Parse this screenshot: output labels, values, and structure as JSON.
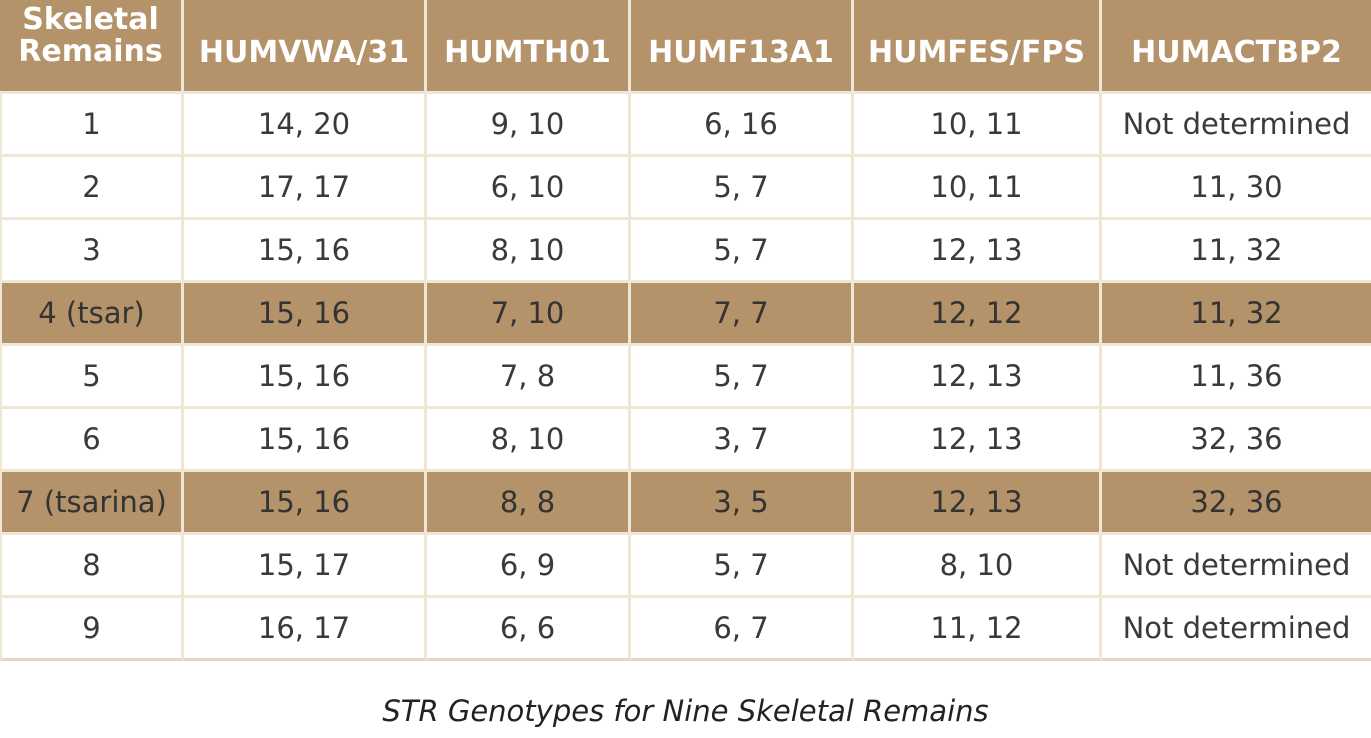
{
  "table": {
    "header_first": [
      "Skeletal",
      "Remains"
    ],
    "headers": [
      "HUMVWA/31",
      "HUMTH01",
      "HUMF13A1",
      "HUMFES/FPS",
      "HUMACTBP2"
    ],
    "rows": [
      {
        "remains": "1",
        "cells": [
          "14, 20",
          "9, 10",
          "6, 16",
          "10, 11",
          "Not determined"
        ],
        "highlight": false
      },
      {
        "remains": "2",
        "cells": [
          "17, 17",
          "6, 10",
          "5, 7",
          "10, 11",
          "11, 30"
        ],
        "highlight": false
      },
      {
        "remains": "3",
        "cells": [
          "15, 16",
          "8, 10",
          "5, 7",
          "12, 13",
          "11, 32"
        ],
        "highlight": false
      },
      {
        "remains": "4 (tsar)",
        "cells": [
          "15, 16",
          "7, 10",
          "7, 7",
          "12, 12",
          "11, 32"
        ],
        "highlight": true
      },
      {
        "remains": "5",
        "cells": [
          "15, 16",
          "7, 8",
          "5, 7",
          "12, 13",
          "11, 36"
        ],
        "highlight": false
      },
      {
        "remains": "6",
        "cells": [
          "15, 16",
          "8, 10",
          "3, 7",
          "12, 13",
          "32, 36"
        ],
        "highlight": false
      },
      {
        "remains": "7 (tsarina)",
        "cells": [
          "15, 16",
          "8, 8",
          "3, 5",
          "12, 13",
          "32, 36"
        ],
        "highlight": true
      },
      {
        "remains": "8",
        "cells": [
          "15, 17",
          "6, 9",
          "5, 7",
          "8, 10",
          "Not determined"
        ],
        "highlight": false
      },
      {
        "remains": "9",
        "cells": [
          "16, 17",
          "6, 6",
          "6, 7",
          "11, 12",
          "Not determined"
        ],
        "highlight": false
      }
    ]
  },
  "caption": "STR Genotypes for Nine Skeletal Remains",
  "colors": {
    "header_bg": "#b4926a",
    "highlight_bg": "#b4926a",
    "grid_line": "#efe6d6"
  }
}
